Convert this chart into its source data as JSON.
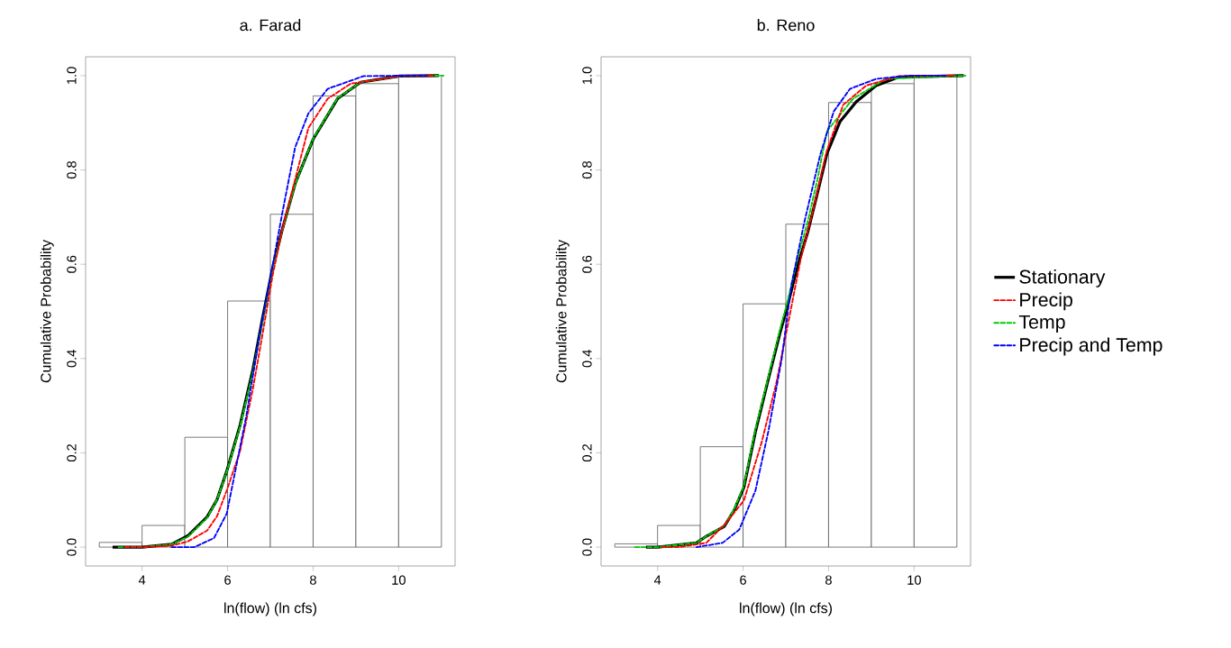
{
  "chart_data": [
    {
      "type": "histogram",
      "title": "a. Farad",
      "xlabel": "ln(flow) (ln cfs)",
      "ylabel": "Cumulative Probability",
      "bins": [
        3,
        4,
        5,
        6,
        7,
        8,
        9,
        10,
        11
      ],
      "values": [
        0.01,
        0.046,
        0.233,
        0.522,
        0.706,
        0.957,
        0.983,
        1.0
      ],
      "color": "#ffffff",
      "xlim": [
        2.68,
        11.32
      ],
      "ylim": [
        -0.04,
        1.04
      ],
      "xticks": [
        4,
        6,
        8,
        10
      ],
      "yticks": [
        {
          "value": 0,
          "label": "0.0"
        },
        {
          "value": 0.2,
          "label": "0.2"
        },
        {
          "value": 0.4,
          "label": "0.4"
        },
        {
          "value": 0.6,
          "label": "0.6"
        },
        {
          "value": 0.8,
          "label": "0.8"
        },
        {
          "value": 1.0,
          "label": "1.0"
        }
      ],
      "grid": false,
      "legend": false,
      "marker": "none",
      "series": [
        {
          "type": "line",
          "color": "#000000",
          "line_style": "solid",
          "x": [
            3.31,
            4.0,
            4.69,
            5.07,
            5.52,
            5.75,
            5.98,
            6.29,
            6.59,
            6.82,
            7.05,
            7.28,
            7.58,
            8.0,
            8.57,
            9.11,
            10.02,
            10.94
          ],
          "values": [
            0,
            0,
            0.006,
            0.024,
            0.064,
            0.1,
            0.161,
            0.258,
            0.376,
            0.487,
            0.591,
            0.674,
            0.771,
            0.865,
            0.951,
            0.986,
            0.999,
            1.0
          ]
        },
        {
          "type": "line",
          "color": "#ff0000",
          "line_style": "dashed",
          "x": [
            3.6,
            4.0,
            4.69,
            5.07,
            5.52,
            5.75,
            5.98,
            6.29,
            6.59,
            6.82,
            7.05,
            7.28,
            7.58,
            7.89,
            8.34,
            8.88,
            10.02,
            10.8
          ],
          "values": [
            0,
            0,
            0.003,
            0.012,
            0.035,
            0.065,
            0.12,
            0.203,
            0.335,
            0.453,
            0.575,
            0.674,
            0.78,
            0.889,
            0.951,
            0.983,
            0.999,
            1.0
          ]
        },
        {
          "type": "line",
          "color": "#00cc00",
          "line_style": "dashed",
          "x": [
            3.45,
            4.0,
            4.69,
            5.07,
            5.52,
            5.75,
            5.98,
            6.29,
            6.59,
            6.82,
            7.05,
            7.28,
            7.58,
            8.0,
            8.57,
            9.11,
            10.02,
            11.05
          ],
          "values": [
            0,
            0,
            0.006,
            0.022,
            0.062,
            0.1,
            0.16,
            0.255,
            0.37,
            0.48,
            0.585,
            0.672,
            0.77,
            0.866,
            0.952,
            0.986,
            0.999,
            1.0
          ]
        },
        {
          "type": "line",
          "color": "#0000ff",
          "line_style": "dashed",
          "x": [
            4.69,
            5.22,
            5.68,
            5.98,
            6.21,
            6.44,
            6.74,
            6.97,
            7.28,
            7.58,
            7.89,
            8.34,
            9.18,
            10.17,
            10.65
          ],
          "values": [
            0,
            0,
            0.019,
            0.071,
            0.175,
            0.279,
            0.446,
            0.556,
            0.709,
            0.848,
            0.92,
            0.972,
            0.999,
            1.0,
            1.0
          ]
        }
      ]
    },
    {
      "type": "histogram",
      "title": "b. Reno",
      "xlabel": "ln(flow) (ln cfs)",
      "ylabel": "Cumulative Probability",
      "bins": [
        3,
        4,
        5,
        6,
        7,
        8,
        9,
        10,
        11
      ],
      "values": [
        0.007,
        0.046,
        0.213,
        0.516,
        0.685,
        0.943,
        0.983,
        1.0
      ],
      "color": "#ffffff",
      "xlim": [
        2.68,
        11.32
      ],
      "ylim": [
        -0.04,
        1.04
      ],
      "xticks": [
        4,
        6,
        8,
        10
      ],
      "yticks": [
        {
          "value": 0,
          "label": "0.0"
        },
        {
          "value": 0.2,
          "label": "0.2"
        },
        {
          "value": 0.4,
          "label": "0.4"
        },
        {
          "value": 0.6,
          "label": "0.6"
        },
        {
          "value": 0.8,
          "label": "0.8"
        },
        {
          "value": 1.0,
          "label": "1.0"
        }
      ],
      "grid": false,
      "legend": "right",
      "marker": "none",
      "series": [
        {
          "name": "Stationary",
          "type": "line",
          "color": "#000000",
          "line_style": "solid",
          "x": [
            3.73,
            4.0,
            4.91,
            5.14,
            5.56,
            5.79,
            6.02,
            6.29,
            6.59,
            6.86,
            7.05,
            7.28,
            7.51,
            7.74,
            7.96,
            8.27,
            8.65,
            9.11,
            9.64,
            11.16
          ],
          "values": [
            0,
            0,
            0.009,
            0.023,
            0.044,
            0.078,
            0.127,
            0.245,
            0.356,
            0.453,
            0.515,
            0.598,
            0.667,
            0.751,
            0.834,
            0.903,
            0.945,
            0.979,
            0.997,
            1.0
          ]
        },
        {
          "name": "Precip",
          "type": "line",
          "color": "#ff0000",
          "line_style": "dashed",
          "x": [
            4.1,
            4.5,
            5.14,
            5.6,
            6.02,
            6.44,
            6.78,
            7.05,
            7.35,
            7.66,
            7.96,
            8.34,
            8.88,
            9.64,
            10.95
          ],
          "values": [
            0,
            0,
            0.009,
            0.051,
            0.099,
            0.224,
            0.349,
            0.473,
            0.612,
            0.723,
            0.841,
            0.938,
            0.979,
            0.999,
            1.0
          ]
        },
        {
          "name": "Temp",
          "type": "line",
          "color": "#00cc00",
          "line_style": "dashed",
          "x": [
            3.47,
            4.0,
            4.91,
            5.14,
            5.56,
            5.79,
            6.02,
            6.29,
            6.59,
            6.86,
            7.05,
            7.28,
            7.51,
            7.74,
            7.96,
            8.57,
            9.34,
            11.2
          ],
          "values": [
            0,
            0,
            0.009,
            0.023,
            0.045,
            0.08,
            0.13,
            0.25,
            0.36,
            0.46,
            0.525,
            0.615,
            0.69,
            0.78,
            0.882,
            0.951,
            0.993,
            1.0
          ]
        },
        {
          "name": "Precip and Temp",
          "type": "line",
          "color": "#0000ff",
          "line_style": "dashed",
          "x": [
            4.91,
            5.52,
            5.91,
            6.29,
            6.59,
            6.9,
            7.13,
            7.43,
            7.81,
            8.12,
            8.5,
            9.11,
            9.87,
            10.75
          ],
          "values": [
            0,
            0.009,
            0.037,
            0.12,
            0.245,
            0.397,
            0.556,
            0.688,
            0.834,
            0.924,
            0.972,
            0.993,
            1.0,
            1.0
          ]
        }
      ]
    }
  ]
}
